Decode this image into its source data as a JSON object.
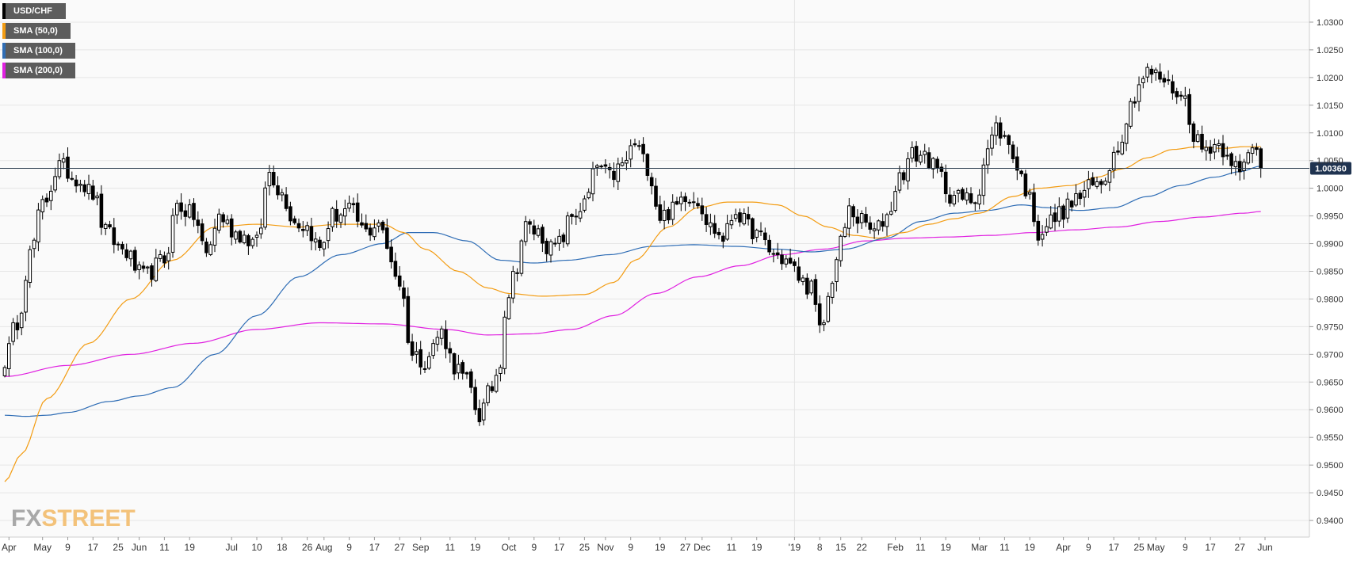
{
  "chart_data": {
    "type": "candlestick",
    "symbol": "USD/CHF",
    "last_price_label": "1.00360",
    "colors": {
      "sma50": "#f39c12",
      "sma100": "#2f6db5",
      "sma200": "#e020e0",
      "candle": "#000000",
      "price_line": "#2c3e50",
      "price_label_bg": "#1f3350",
      "legend_bg": "#5c5c5c",
      "grid": "#e6e6e6"
    },
    "legend": [
      {
        "label": "USD/CHF",
        "color": "#000000"
      },
      {
        "label": "SMA (50,0)",
        "color": "#f39c12"
      },
      {
        "label": "SMA (100,0)",
        "color": "#2f6db5"
      },
      {
        "label": "SMA (200,0)",
        "color": "#e020e0"
      }
    ],
    "y_ticks": [
      "1.0300",
      "1.0250",
      "1.0200",
      "1.0150",
      "1.0100",
      "1.0050",
      "1.0000",
      "0.9950",
      "0.9900",
      "0.9850",
      "0.9800",
      "0.9750",
      "0.9700",
      "0.9650",
      "0.9600",
      "0.9550",
      "0.9500",
      "0.9450",
      "0.9400"
    ],
    "ylim": [
      0.937,
      1.034
    ],
    "grid": true,
    "x_ticks": [
      {
        "label": "Apr",
        "i": 1
      },
      {
        "label": "May",
        "i": 9
      },
      {
        "label": "9",
        "i": 15
      },
      {
        "label": "17",
        "i": 21
      },
      {
        "label": "25",
        "i": 27
      },
      {
        "label": "Jun",
        "i": 32
      },
      {
        "label": "11",
        "i": 38
      },
      {
        "label": "19",
        "i": 44
      },
      {
        "label": "Jul",
        "i": 54
      },
      {
        "label": "10",
        "i": 60
      },
      {
        "label": "18",
        "i": 66
      },
      {
        "label": "26",
        "i": 72
      },
      {
        "label": "Aug",
        "i": 76
      },
      {
        "label": "9",
        "i": 82
      },
      {
        "label": "17",
        "i": 88
      },
      {
        "label": "27",
        "i": 94
      },
      {
        "label": "Sep",
        "i": 99
      },
      {
        "label": "11",
        "i": 106
      },
      {
        "label": "19",
        "i": 112
      },
      {
        "label": "Oct",
        "i": 120
      },
      {
        "label": "9",
        "i": 126
      },
      {
        "label": "17",
        "i": 132
      },
      {
        "label": "25",
        "i": 138
      },
      {
        "label": "Nov",
        "i": 143
      },
      {
        "label": "9",
        "i": 149
      },
      {
        "label": "19",
        "i": 156
      },
      {
        "label": "27",
        "i": 162
      },
      {
        "label": "Dec",
        "i": 166
      },
      {
        "label": "11",
        "i": 173
      },
      {
        "label": "19",
        "i": 179
      },
      {
        "label": "'19",
        "i": 188
      },
      {
        "label": "8",
        "i": 194
      },
      {
        "label": "15",
        "i": 199
      },
      {
        "label": "22",
        "i": 204
      },
      {
        "label": "Feb",
        "i": 212
      },
      {
        "label": "11",
        "i": 218
      },
      {
        "label": "19",
        "i": 224
      },
      {
        "label": "Mar",
        "i": 232
      },
      {
        "label": "11",
        "i": 238
      },
      {
        "label": "19",
        "i": 244
      },
      {
        "label": "Apr",
        "i": 252
      },
      {
        "label": "9",
        "i": 258
      },
      {
        "label": "17",
        "i": 264
      },
      {
        "label": "25",
        "i": 270
      },
      {
        "label": "May",
        "i": 274
      },
      {
        "label": "9",
        "i": 281
      },
      {
        "label": "17",
        "i": 287
      },
      {
        "label": "27",
        "i": 294
      },
      {
        "label": "Jun",
        "i": 300
      }
    ],
    "close_anchors": [
      [
        0,
        0.969
      ],
      [
        3,
        0.976
      ],
      [
        6,
        0.988
      ],
      [
        9,
        0.997
      ],
      [
        13,
        1.004
      ],
      [
        17,
        1.002
      ],
      [
        21,
        0.999
      ],
      [
        24,
        0.992
      ],
      [
        28,
        0.989
      ],
      [
        33,
        0.984
      ],
      [
        38,
        0.987
      ],
      [
        41,
        0.997
      ],
      [
        45,
        0.995
      ],
      [
        48,
        0.988
      ],
      [
        51,
        0.995
      ],
      [
        55,
        0.992
      ],
      [
        60,
        0.99
      ],
      [
        63,
        1.003
      ],
      [
        66,
        0.999
      ],
      [
        69,
        0.994
      ],
      [
        72,
        0.993
      ],
      [
        75,
        0.989
      ],
      [
        78,
        0.995
      ],
      [
        82,
        0.996
      ],
      [
        86,
        0.992
      ],
      [
        89,
        0.994
      ],
      [
        91,
        0.989
      ],
      [
        94,
        0.983
      ],
      [
        97,
        0.97
      ],
      [
        100,
        0.969
      ],
      [
        104,
        0.974
      ],
      [
        107,
        0.968
      ],
      [
        110,
        0.965
      ],
      [
        113,
        0.959
      ],
      [
        116,
        0.964
      ],
      [
        118,
        0.969
      ],
      [
        119,
        0.978
      ],
      [
        121,
        0.984
      ],
      [
        124,
        0.993
      ],
      [
        127,
        0.992
      ],
      [
        130,
        0.989
      ],
      [
        132,
        0.99
      ],
      [
        135,
        0.995
      ],
      [
        138,
        0.997
      ],
      [
        141,
        1.004
      ],
      [
        144,
        1.002
      ],
      [
        147,
        1.004
      ],
      [
        150,
        1.008
      ],
      [
        153,
        1.004
      ],
      [
        156,
        0.995
      ],
      [
        159,
        0.996
      ],
      [
        162,
        0.999
      ],
      [
        165,
        0.998
      ],
      [
        168,
        0.993
      ],
      [
        171,
        0.991
      ],
      [
        174,
        0.996
      ],
      [
        177,
        0.993
      ],
      [
        180,
        0.991
      ],
      [
        183,
        0.988
      ],
      [
        186,
        0.987
      ],
      [
        188,
        0.985
      ],
      [
        190,
        0.983
      ],
      [
        192,
        0.982
      ],
      [
        194,
        0.974
      ],
      [
        195,
        0.976
      ],
      [
        197,
        0.984
      ],
      [
        199,
        0.99
      ],
      [
        201,
        0.996
      ],
      [
        204,
        0.994
      ],
      [
        207,
        0.992
      ],
      [
        210,
        0.995
      ],
      [
        213,
        1.002
      ],
      [
        216,
        1.006
      ],
      [
        219,
        1.006
      ],
      [
        222,
        1.003
      ],
      [
        225,
        0.999
      ],
      [
        228,
        0.998
      ],
      [
        231,
        0.998
      ],
      [
        234,
        1.007
      ],
      [
        236,
        1.011
      ],
      [
        239,
        1.008
      ],
      [
        242,
        1.002
      ],
      [
        244,
        0.998
      ],
      [
        246,
        0.992
      ],
      [
        249,
        0.994
      ],
      [
        252,
        0.996
      ],
      [
        255,
        0.998
      ],
      [
        258,
        1.0
      ],
      [
        261,
        1.001
      ],
      [
        264,
        1.006
      ],
      [
        266,
        1.01
      ],
      [
        268,
        1.015
      ],
      [
        270,
        1.019
      ],
      [
        272,
        1.021
      ],
      [
        275,
        1.02
      ],
      [
        278,
        1.018
      ],
      [
        281,
        1.016
      ],
      [
        283,
        1.01
      ],
      [
        285,
        1.007
      ],
      [
        288,
        1.008
      ],
      [
        291,
        1.007
      ],
      [
        293,
        1.004
      ],
      [
        294,
        1.002
      ],
      [
        296,
        1.006
      ],
      [
        298,
        1.008
      ],
      [
        299,
        1.0036
      ]
    ],
    "sma50_anchors": [
      [
        0,
        0.947
      ],
      [
        4,
        0.952
      ],
      [
        10,
        0.962
      ],
      [
        20,
        0.972
      ],
      [
        30,
        0.98
      ],
      [
        40,
        0.987
      ],
      [
        50,
        0.993
      ],
      [
        60,
        0.9935
      ],
      [
        70,
        0.993
      ],
      [
        80,
        0.9935
      ],
      [
        90,
        0.9935
      ],
      [
        95,
        0.992
      ],
      [
        100,
        0.989
      ],
      [
        108,
        0.985
      ],
      [
        115,
        0.982
      ],
      [
        120,
        0.981
      ],
      [
        128,
        0.9805
      ],
      [
        138,
        0.9808
      ],
      [
        145,
        0.983
      ],
      [
        150,
        0.987
      ],
      [
        158,
        0.993
      ],
      [
        165,
        0.9965
      ],
      [
        172,
        0.9975
      ],
      [
        178,
        0.9975
      ],
      [
        184,
        0.997
      ],
      [
        190,
        0.995
      ],
      [
        196,
        0.993
      ],
      [
        202,
        0.9915
      ],
      [
        208,
        0.991
      ],
      [
        214,
        0.992
      ],
      [
        220,
        0.9935
      ],
      [
        226,
        0.9945
      ],
      [
        232,
        0.9955
      ],
      [
        240,
        0.9985
      ],
      [
        246,
        1.0
      ],
      [
        254,
        1.0005
      ],
      [
        260,
        1.002
      ],
      [
        266,
        1.0035
      ],
      [
        272,
        1.0055
      ],
      [
        278,
        1.007
      ],
      [
        284,
        1.0075
      ],
      [
        290,
        1.0072
      ],
      [
        295,
        1.0075
      ],
      [
        299,
        1.0075
      ]
    ],
    "sma100_anchors": [
      [
        0,
        0.959
      ],
      [
        5,
        0.9588
      ],
      [
        10,
        0.959
      ],
      [
        15,
        0.9595
      ],
      [
        25,
        0.9615
      ],
      [
        32,
        0.9625
      ],
      [
        40,
        0.964
      ],
      [
        50,
        0.97
      ],
      [
        60,
        0.977
      ],
      [
        70,
        0.984
      ],
      [
        80,
        0.988
      ],
      [
        90,
        0.99
      ],
      [
        96,
        0.992
      ],
      [
        102,
        0.992
      ],
      [
        110,
        0.9905
      ],
      [
        118,
        0.987
      ],
      [
        126,
        0.9865
      ],
      [
        134,
        0.987
      ],
      [
        144,
        0.988
      ],
      [
        154,
        0.9895
      ],
      [
        164,
        0.9898
      ],
      [
        174,
        0.9895
      ],
      [
        184,
        0.989
      ],
      [
        192,
        0.9885
      ],
      [
        200,
        0.989
      ],
      [
        210,
        0.991
      ],
      [
        218,
        0.994
      ],
      [
        226,
        0.9955
      ],
      [
        234,
        0.996
      ],
      [
        242,
        0.997
      ],
      [
        248,
        0.9965
      ],
      [
        256,
        0.996
      ],
      [
        264,
        0.9965
      ],
      [
        272,
        0.9985
      ],
      [
        280,
        1.0005
      ],
      [
        288,
        1.002
      ],
      [
        294,
        1.003
      ],
      [
        299,
        1.004
      ]
    ],
    "sma200_anchors": [
      [
        0,
        0.966
      ],
      [
        15,
        0.968
      ],
      [
        30,
        0.97
      ],
      [
        45,
        0.972
      ],
      [
        60,
        0.9745
      ],
      [
        75,
        0.9757
      ],
      [
        90,
        0.9755
      ],
      [
        105,
        0.9745
      ],
      [
        115,
        0.9735
      ],
      [
        125,
        0.9737
      ],
      [
        135,
        0.9745
      ],
      [
        145,
        0.977
      ],
      [
        155,
        0.981
      ],
      [
        165,
        0.984
      ],
      [
        175,
        0.986
      ],
      [
        185,
        0.988
      ],
      [
        195,
        0.989
      ],
      [
        205,
        0.9905
      ],
      [
        215,
        0.991
      ],
      [
        225,
        0.9912
      ],
      [
        235,
        0.9915
      ],
      [
        245,
        0.992
      ],
      [
        255,
        0.9925
      ],
      [
        265,
        0.993
      ],
      [
        275,
        0.994
      ],
      [
        285,
        0.9948
      ],
      [
        295,
        0.9955
      ],
      [
        299,
        0.9958
      ]
    ]
  },
  "watermark": {
    "fx": "FX",
    "street": "STREET"
  }
}
